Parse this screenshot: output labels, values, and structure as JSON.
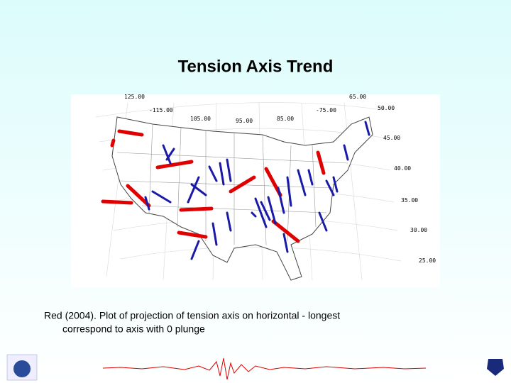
{
  "title": "Tension Axis Trend",
  "map": {
    "longitude_labels": [
      "125.00",
      "-115.00",
      "105.00",
      "95.00",
      "85.00",
      "-75.00",
      "65.00"
    ],
    "latitude_labels": [
      "50.00",
      "45.00",
      "40.00",
      "35.00",
      "30.00",
      "25.00"
    ]
  },
  "caption": [
    "Red (2004). Plot of projection of tension axis on horizontal - longest",
    "correspond to axis with 0 plunge"
  ]
}
